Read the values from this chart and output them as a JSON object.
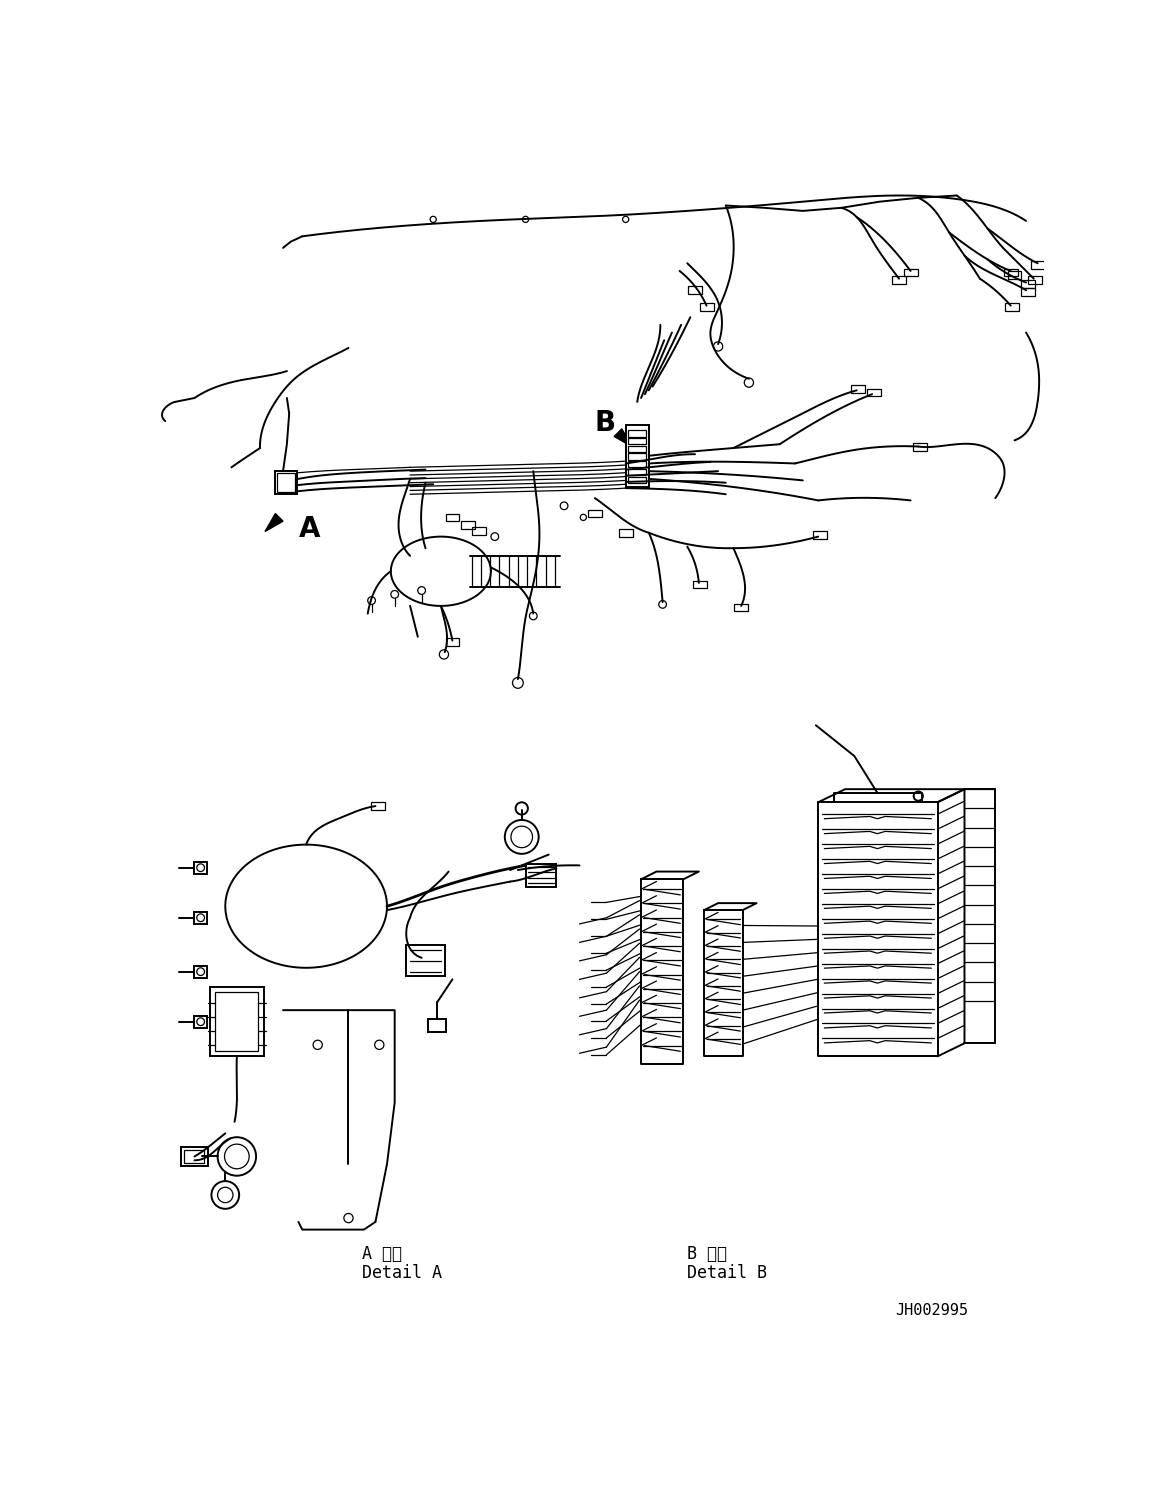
{
  "figure_width": 11.63,
  "figure_height": 14.88,
  "dpi": 100,
  "bg_color": "#ffffff",
  "line_color": "#000000",
  "lw_main": 1.4,
  "lw_thin": 0.9,
  "lw_thick": 2.0,
  "label_A": "A",
  "label_B": "B",
  "text_detail_A_jp": "A 詳細",
  "text_detail_A_en": "Detail A",
  "text_detail_B_jp": "B 詳細",
  "text_detail_B_en": "Detail B",
  "part_number": "JH002995"
}
